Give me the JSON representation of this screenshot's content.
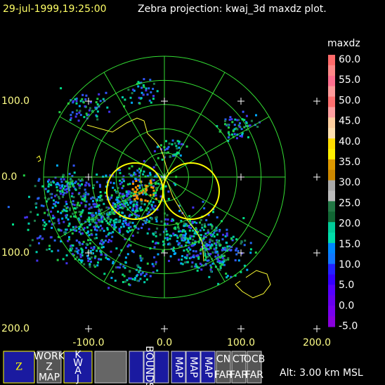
{
  "header": {
    "time": "29-jul-1999,19:25:00",
    "title": "Zebra projection: kwaj_3d maxdz plot."
  },
  "colorbar": {
    "title": "maxdz",
    "labels": [
      "60.0",
      "55.0",
      "50.0",
      "45.0",
      "40.0",
      "35.0",
      "30.0",
      "25.0",
      "20.0",
      "15.0",
      "10.0",
      "5.0",
      "0.0",
      "-5.0"
    ]
  },
  "axes": {
    "x_labels": [
      "-100.0",
      "0.0",
      "100.0",
      "200.0"
    ],
    "y_labels": [
      "100.0",
      "0.0",
      "100.0",
      "200.0"
    ]
  },
  "toolbar": {
    "buttons": [
      {
        "lines": [
          "Z"
        ]
      },
      {
        "lines": [
          "WORK",
          "Z",
          "MAP"
        ]
      },
      {
        "lines": [
          "K",
          "W",
          "A",
          "J"
        ]
      },
      {
        "lines": [
          "BOUNDS"
        ]
      },
      {
        "lines": [
          "MAP"
        ]
      },
      {
        "lines": [
          "MAP"
        ]
      },
      {
        "lines": [
          "MAP"
        ]
      },
      {
        "lines": [
          "CN",
          "FAR"
        ]
      },
      {
        "lines": [
          "CT",
          "FAR"
        ]
      },
      {
        "lines": [
          "OCB",
          "FAR"
        ]
      }
    ]
  },
  "status": "Alt: 3.00 km MSL"
}
